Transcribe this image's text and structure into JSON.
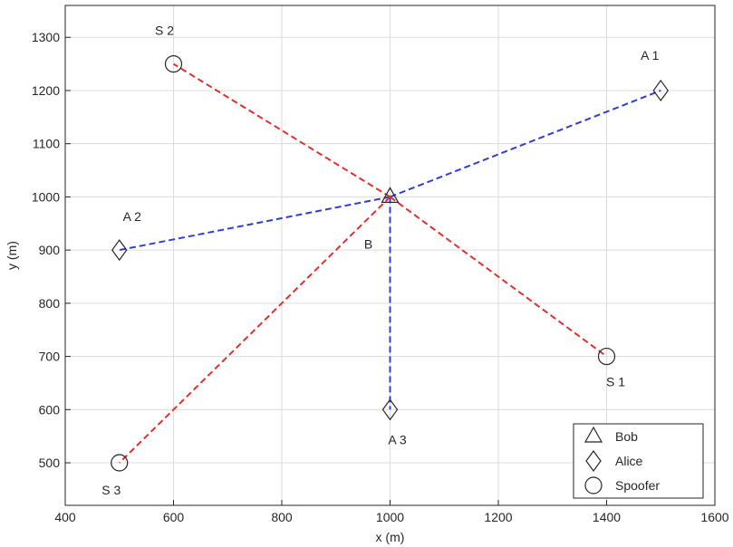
{
  "chart_data": {
    "type": "scatter",
    "xlabel": "x (m)",
    "ylabel": "y (m)",
    "xlim": [
      400,
      1600
    ],
    "ylim": [
      420,
      1360
    ],
    "xticks": [
      400,
      600,
      800,
      1000,
      1200,
      1400,
      1600
    ],
    "yticks": [
      500,
      600,
      700,
      800,
      900,
      1000,
      1100,
      1200,
      1300
    ],
    "grid": true,
    "legend_placement": "bottom-right",
    "legend": [
      {
        "label": "Bob",
        "marker": "triangle"
      },
      {
        "label": "Alice",
        "marker": "diamond"
      },
      {
        "label": "Spoofer",
        "marker": "circle"
      }
    ],
    "points": [
      {
        "label": "B",
        "group": "Bob",
        "x": 1000,
        "y": 1000
      },
      {
        "label": "A 1",
        "group": "Alice",
        "x": 1500,
        "y": 1200
      },
      {
        "label": "A 2",
        "group": "Alice",
        "x": 500,
        "y": 900
      },
      {
        "label": "A 3",
        "group": "Alice",
        "x": 1000,
        "y": 600
      },
      {
        "label": "S 1",
        "group": "Spoofer",
        "x": 1400,
        "y": 700
      },
      {
        "label": "S 2",
        "group": "Spoofer",
        "x": 600,
        "y": 1250
      },
      {
        "label": "S 3",
        "group": "Spoofer",
        "x": 500,
        "y": 500
      }
    ],
    "links": [
      {
        "from": "B",
        "to": "A 1",
        "color": "#2f3ed6"
      },
      {
        "from": "B",
        "to": "A 2",
        "color": "#2f3ed6"
      },
      {
        "from": "B",
        "to": "A 3",
        "color": "#2f3ed6"
      },
      {
        "from": "B",
        "to": "S 1",
        "color": "#e03030"
      },
      {
        "from": "B",
        "to": "S 2",
        "color": "#e03030"
      },
      {
        "from": "B",
        "to": "S 3",
        "color": "#e03030"
      }
    ]
  }
}
